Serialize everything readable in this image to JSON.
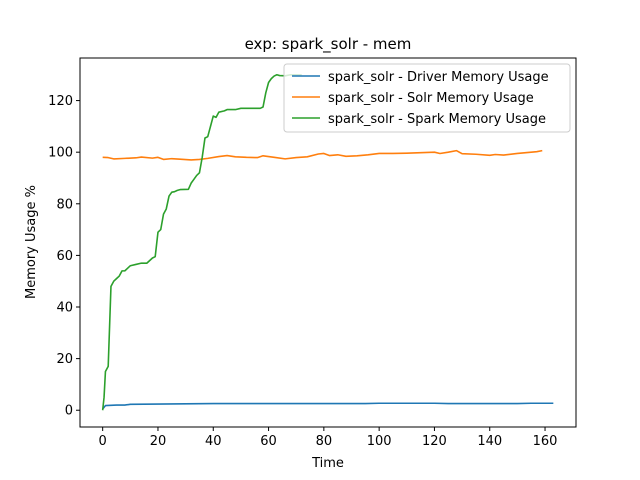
{
  "chart_data": {
    "type": "line",
    "title": "exp: spark_solr - mem",
    "xlabel": "Time",
    "ylabel": "Memory Usage %",
    "xlim": [
      -8.2,
      171.2
    ],
    "ylim": [
      -6.5,
      136.5
    ],
    "xticks": [
      0,
      20,
      40,
      60,
      80,
      100,
      120,
      140,
      160
    ],
    "yticks": [
      0,
      20,
      40,
      60,
      80,
      100,
      120
    ],
    "grid": false,
    "legend_position": "top-right",
    "series": [
      {
        "name": "spark_solr - Driver Memory Usage",
        "color": "#1f77b4",
        "x": [
          0,
          1,
          3,
          5,
          8,
          10,
          20,
          30,
          40,
          60,
          80,
          95,
          100,
          120,
          125,
          130,
          150,
          155,
          163
        ],
        "y": [
          0.5,
          1.8,
          1.9,
          2.0,
          2.0,
          2.3,
          2.4,
          2.5,
          2.6,
          2.6,
          2.6,
          2.6,
          2.7,
          2.7,
          2.6,
          2.6,
          2.6,
          2.7,
          2.7
        ]
      },
      {
        "name": "spark_solr - Solr Memory Usage",
        "color": "#ff7f0e",
        "x": [
          0,
          2,
          4,
          8,
          12,
          14,
          18,
          20,
          22,
          25,
          28,
          32,
          35,
          38,
          42,
          45,
          48,
          52,
          56,
          58,
          62,
          66,
          70,
          74,
          78,
          80,
          82,
          85,
          88,
          92,
          96,
          100,
          105,
          110,
          115,
          120,
          122,
          125,
          128,
          130,
          135,
          140,
          142,
          145,
          150,
          155,
          157,
          159
        ],
        "y": [
          98.0,
          97.9,
          97.4,
          97.6,
          97.8,
          98.1,
          97.7,
          98.0,
          97.2,
          97.5,
          97.3,
          97.0,
          97.2,
          97.6,
          98.3,
          98.7,
          98.2,
          98.0,
          97.9,
          98.6,
          98.0,
          97.4,
          97.9,
          98.2,
          99.3,
          99.5,
          98.7,
          99.0,
          98.4,
          98.6,
          99.0,
          99.5,
          99.5,
          99.6,
          99.8,
          100.0,
          99.5,
          100.0,
          100.6,
          99.4,
          99.2,
          98.8,
          99.1,
          98.9,
          99.5,
          100.0,
          100.2,
          100.6
        ]
      },
      {
        "name": "spark_solr - Spark Memory Usage",
        "color": "#2ca02c",
        "x": [
          0,
          0.5,
          1,
          2,
          3,
          4,
          5,
          6,
          7,
          8,
          9,
          10,
          12,
          14,
          16,
          18,
          19,
          20,
          21,
          22,
          23,
          24,
          25,
          26,
          27,
          28,
          31,
          32,
          33,
          34,
          35,
          36,
          37,
          38,
          39,
          40,
          41,
          42,
          44,
          45,
          48,
          50,
          55,
          57,
          58,
          59,
          60,
          61,
          62,
          63,
          64,
          66,
          68,
          72
        ],
        "y": [
          0,
          5,
          15,
          17,
          48,
          50,
          51,
          52,
          54,
          54,
          55,
          56,
          56.5,
          57,
          57,
          59,
          59.5,
          69,
          70,
          76,
          78,
          83,
          84.5,
          84.7,
          85.2,
          85.5,
          85.6,
          88,
          89.5,
          91,
          92,
          98,
          105.5,
          106,
          110,
          114,
          113.5,
          115.5,
          116,
          116.5,
          116.5,
          117,
          117,
          117,
          117.5,
          123,
          127,
          128.5,
          129.5,
          130,
          129.7,
          129.6,
          130,
          130
        ]
      }
    ]
  }
}
